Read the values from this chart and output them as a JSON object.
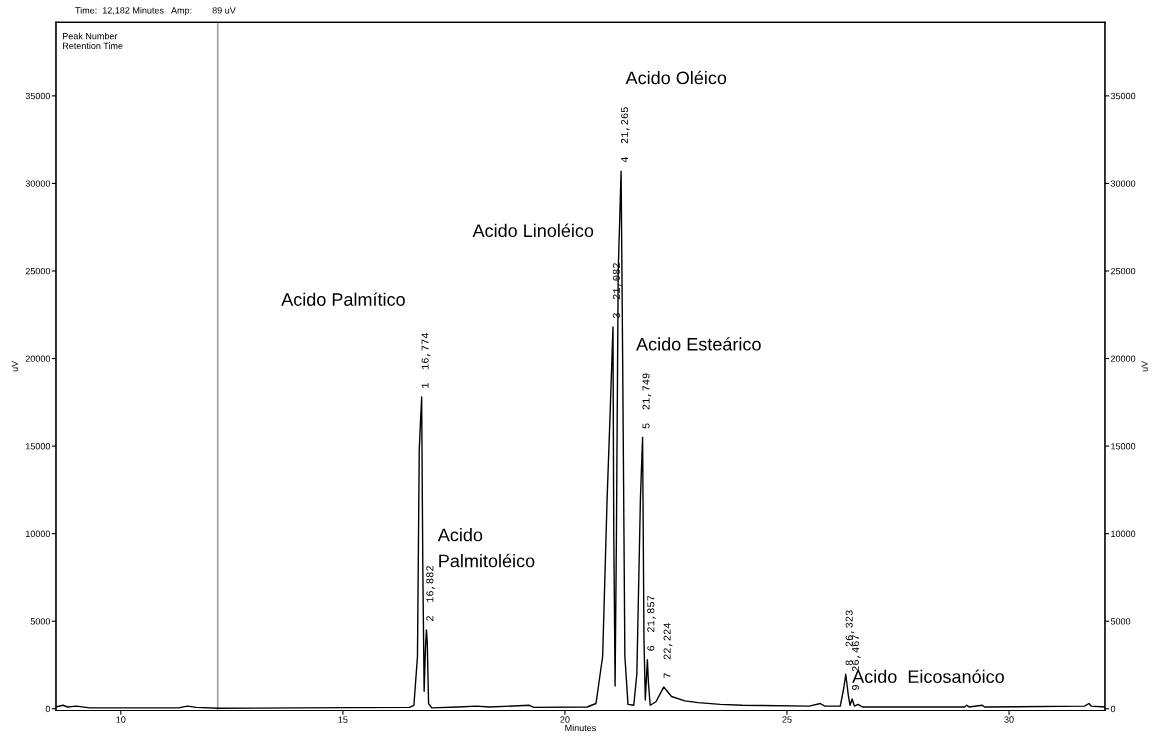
{
  "chart_data": {
    "type": "line",
    "xlabel": "Minutes",
    "ylabel": "uV",
    "y2label": "uV",
    "xlim": [
      8.54,
      32.16
    ],
    "xticks": [
      10,
      15,
      20,
      25,
      30
    ],
    "ylim": [
      -100,
      39200
    ],
    "yticks": [
      0,
      5000,
      10000,
      15000,
      20000,
      25000,
      30000,
      35000
    ],
    "y2lim": [
      -100,
      39200
    ],
    "y2ticks": [
      0,
      5000,
      10000,
      15000,
      20000,
      25000,
      30000,
      35000
    ],
    "grid": false,
    "marker": "none",
    "line_style": "solid",
    "ref_lines": [
      {
        "axis": "x",
        "value": 12.182,
        "color": "#a0a0a0"
      }
    ],
    "series": [
      {
        "color": "#000000",
        "x": [
          8.54,
          8.7,
          8.8,
          9.0,
          9.3,
          10.0,
          11.3,
          11.5,
          11.7,
          12.2,
          14.0,
          16.5,
          16.6,
          16.68,
          16.72,
          16.774,
          16.8,
          16.83,
          16.86,
          16.882,
          16.9,
          16.93,
          17.0,
          17.6,
          18.0,
          18.3,
          19.2,
          19.3,
          20.5,
          20.7,
          20.85,
          20.95,
          21.02,
          21.082,
          21.1,
          21.13,
          21.16,
          21.2,
          21.265,
          21.3,
          21.35,
          21.42,
          21.55,
          21.62,
          21.7,
          21.749,
          21.78,
          21.81,
          21.857,
          21.88,
          21.92,
          22.05,
          22.224,
          22.4,
          22.7,
          23.0,
          23.5,
          24.0,
          25.5,
          25.75,
          25.85,
          26.2,
          26.28,
          26.323,
          26.38,
          26.42,
          26.467,
          26.52,
          26.6,
          26.7,
          29.0,
          29.05,
          29.1,
          29.4,
          29.45,
          31.7,
          31.8,
          31.85,
          32.16
        ],
        "values": [
          100,
          200,
          100,
          150,
          50,
          50,
          50,
          150,
          80,
          30,
          50,
          80,
          200,
          3000,
          14800,
          17800,
          8200,
          1000,
          3500,
          4500,
          3800,
          300,
          50,
          100,
          150,
          100,
          200,
          80,
          100,
          300,
          3000,
          12000,
          17000,
          21800,
          10000,
          1300,
          10000,
          25000,
          30700,
          20000,
          3000,
          250,
          200,
          2000,
          12000,
          15500,
          4000,
          500,
          2800,
          1500,
          200,
          400,
          1240,
          700,
          450,
          350,
          250,
          200,
          150,
          300,
          150,
          150,
          1200,
          1970,
          800,
          200,
          560,
          150,
          250,
          100,
          100,
          200,
          100,
          200,
          100,
          150,
          300,
          150,
          100
        ]
      }
    ],
    "annotations": [
      "Time:  12,182 Minutes   Amp:        89 uV",
      "Peak Number\nRetention Time",
      "Acido Palmítico",
      "Acido\nPalmitoléico",
      "Acido Linoléico",
      "Acido Oléico",
      "Acido Esteárico",
      "Acido  Eicosanóico",
      {
        "text": "1  16,774",
        "x": 16.774,
        "y": 17800
      },
      {
        "text": "2  16,882",
        "x": 16.882,
        "y": 4500
      },
      {
        "text": "3  21,082",
        "x": 21.082,
        "y": 21800
      },
      {
        "text": "4  21,265",
        "x": 21.265,
        "y": 30700
      },
      {
        "text": "5  21,749",
        "x": 21.749,
        "y": 15500
      },
      {
        "text": "6  21,857",
        "x": 21.857,
        "y": 2800
      },
      {
        "text": "7  22,224",
        "x": 22.224,
        "y": 1240
      },
      {
        "text": "8  26,323",
        "x": 26.323,
        "y": 1970
      },
      {
        "text": "9  26,467",
        "x": 26.467,
        "y": 560
      }
    ]
  }
}
